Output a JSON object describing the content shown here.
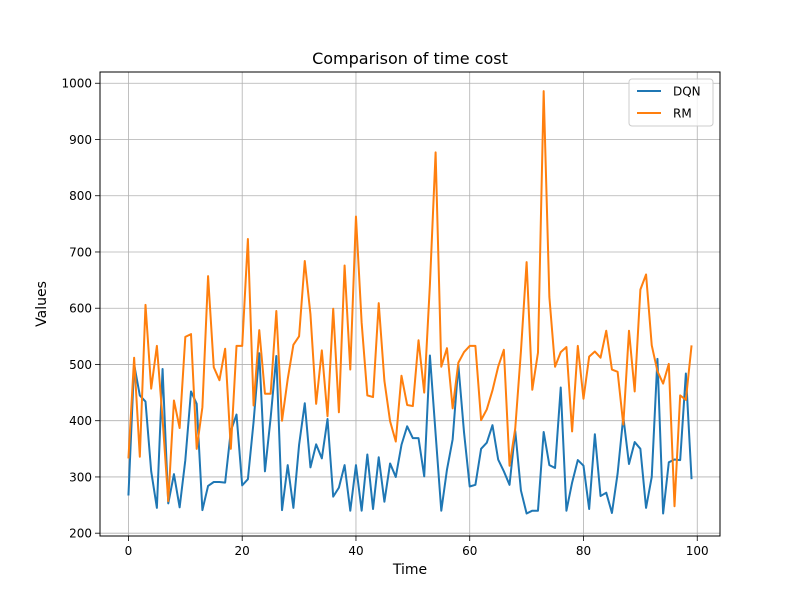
{
  "chart_data": {
    "type": "line",
    "title": "Comparison of time cost",
    "xlabel": "Time",
    "ylabel": "Values",
    "xlim": [
      -5,
      104
    ],
    "ylim": [
      195,
      1020
    ],
    "xticks": [
      0,
      20,
      40,
      60,
      80,
      100
    ],
    "yticks": [
      200,
      300,
      400,
      500,
      600,
      700,
      800,
      900,
      1000
    ],
    "grid": true,
    "legend_position": "top-right",
    "x": [
      0,
      1,
      2,
      3,
      4,
      5,
      6,
      7,
      8,
      9,
      10,
      11,
      12,
      13,
      14,
      15,
      16,
      17,
      18,
      19,
      20,
      21,
      22,
      23,
      24,
      25,
      26,
      27,
      28,
      29,
      30,
      31,
      32,
      33,
      34,
      35,
      36,
      37,
      38,
      39,
      40,
      41,
      42,
      43,
      44,
      45,
      46,
      47,
      48,
      49,
      50,
      51,
      52,
      53,
      54,
      55,
      56,
      57,
      58,
      59,
      60,
      61,
      62,
      63,
      64,
      65,
      66,
      67,
      68,
      69,
      70,
      71,
      72,
      73,
      74,
      75,
      76,
      77,
      78,
      79,
      80,
      81,
      82,
      83,
      84,
      85,
      86,
      87,
      88,
      89,
      90,
      91,
      92,
      93,
      94,
      95,
      96,
      97,
      98,
      99
    ],
    "series": [
      {
        "name": "DQN",
        "color": "#1f77b4",
        "values": [
          267,
          500,
          445,
          434,
          310,
          245,
          492,
          253,
          305,
          246,
          330,
          452,
          430,
          241,
          284,
          291,
          291,
          290,
          382,
          411,
          285,
          296,
          398,
          520,
          310,
          405,
          515,
          241,
          321,
          245,
          357,
          431,
          317,
          358,
          333,
          403,
          265,
          281,
          321,
          240,
          321,
          240,
          340,
          243,
          335,
          256,
          324,
          300,
          357,
          390,
          369,
          369,
          301,
          516,
          377,
          240,
          313,
          367,
          499,
          379,
          283,
          286,
          350,
          361,
          392,
          331,
          310,
          286,
          382,
          276,
          235,
          240,
          240,
          380,
          321,
          316,
          459,
          240,
          290,
          330,
          320,
          243,
          376,
          266,
          272,
          236,
          306,
          407,
          323,
          362,
          350,
          245,
          300,
          510,
          235,
          326,
          331,
          330,
          484,
          296
        ]
      },
      {
        "name": "RM",
        "color": "#ff7f0e",
        "values": [
          333,
          512,
          336,
          606,
          457,
          533,
          403,
          257,
          436,
          387,
          549,
          554,
          350,
          424,
          657,
          495,
          472,
          528,
          350,
          533,
          533,
          723,
          427,
          561,
          448,
          448,
          595,
          400,
          474,
          535,
          550,
          684,
          589,
          430,
          525,
          408,
          599,
          415,
          676,
          491,
          763,
          574,
          445,
          442,
          609,
          471,
          399,
          363,
          480,
          428,
          426,
          543,
          450,
          642,
          877,
          496,
          529,
          422,
          503,
          522,
          533,
          533,
          401,
          420,
          454,
          496,
          526,
          320,
          386,
          523,
          682,
          455,
          521,
          986,
          620,
          496,
          522,
          531,
          381,
          533,
          439,
          514,
          523,
          512,
          560,
          491,
          487,
          393,
          560,
          452,
          633,
          660,
          534,
          488,
          466,
          501,
          248,
          445,
          437,
          534
        ]
      }
    ]
  }
}
